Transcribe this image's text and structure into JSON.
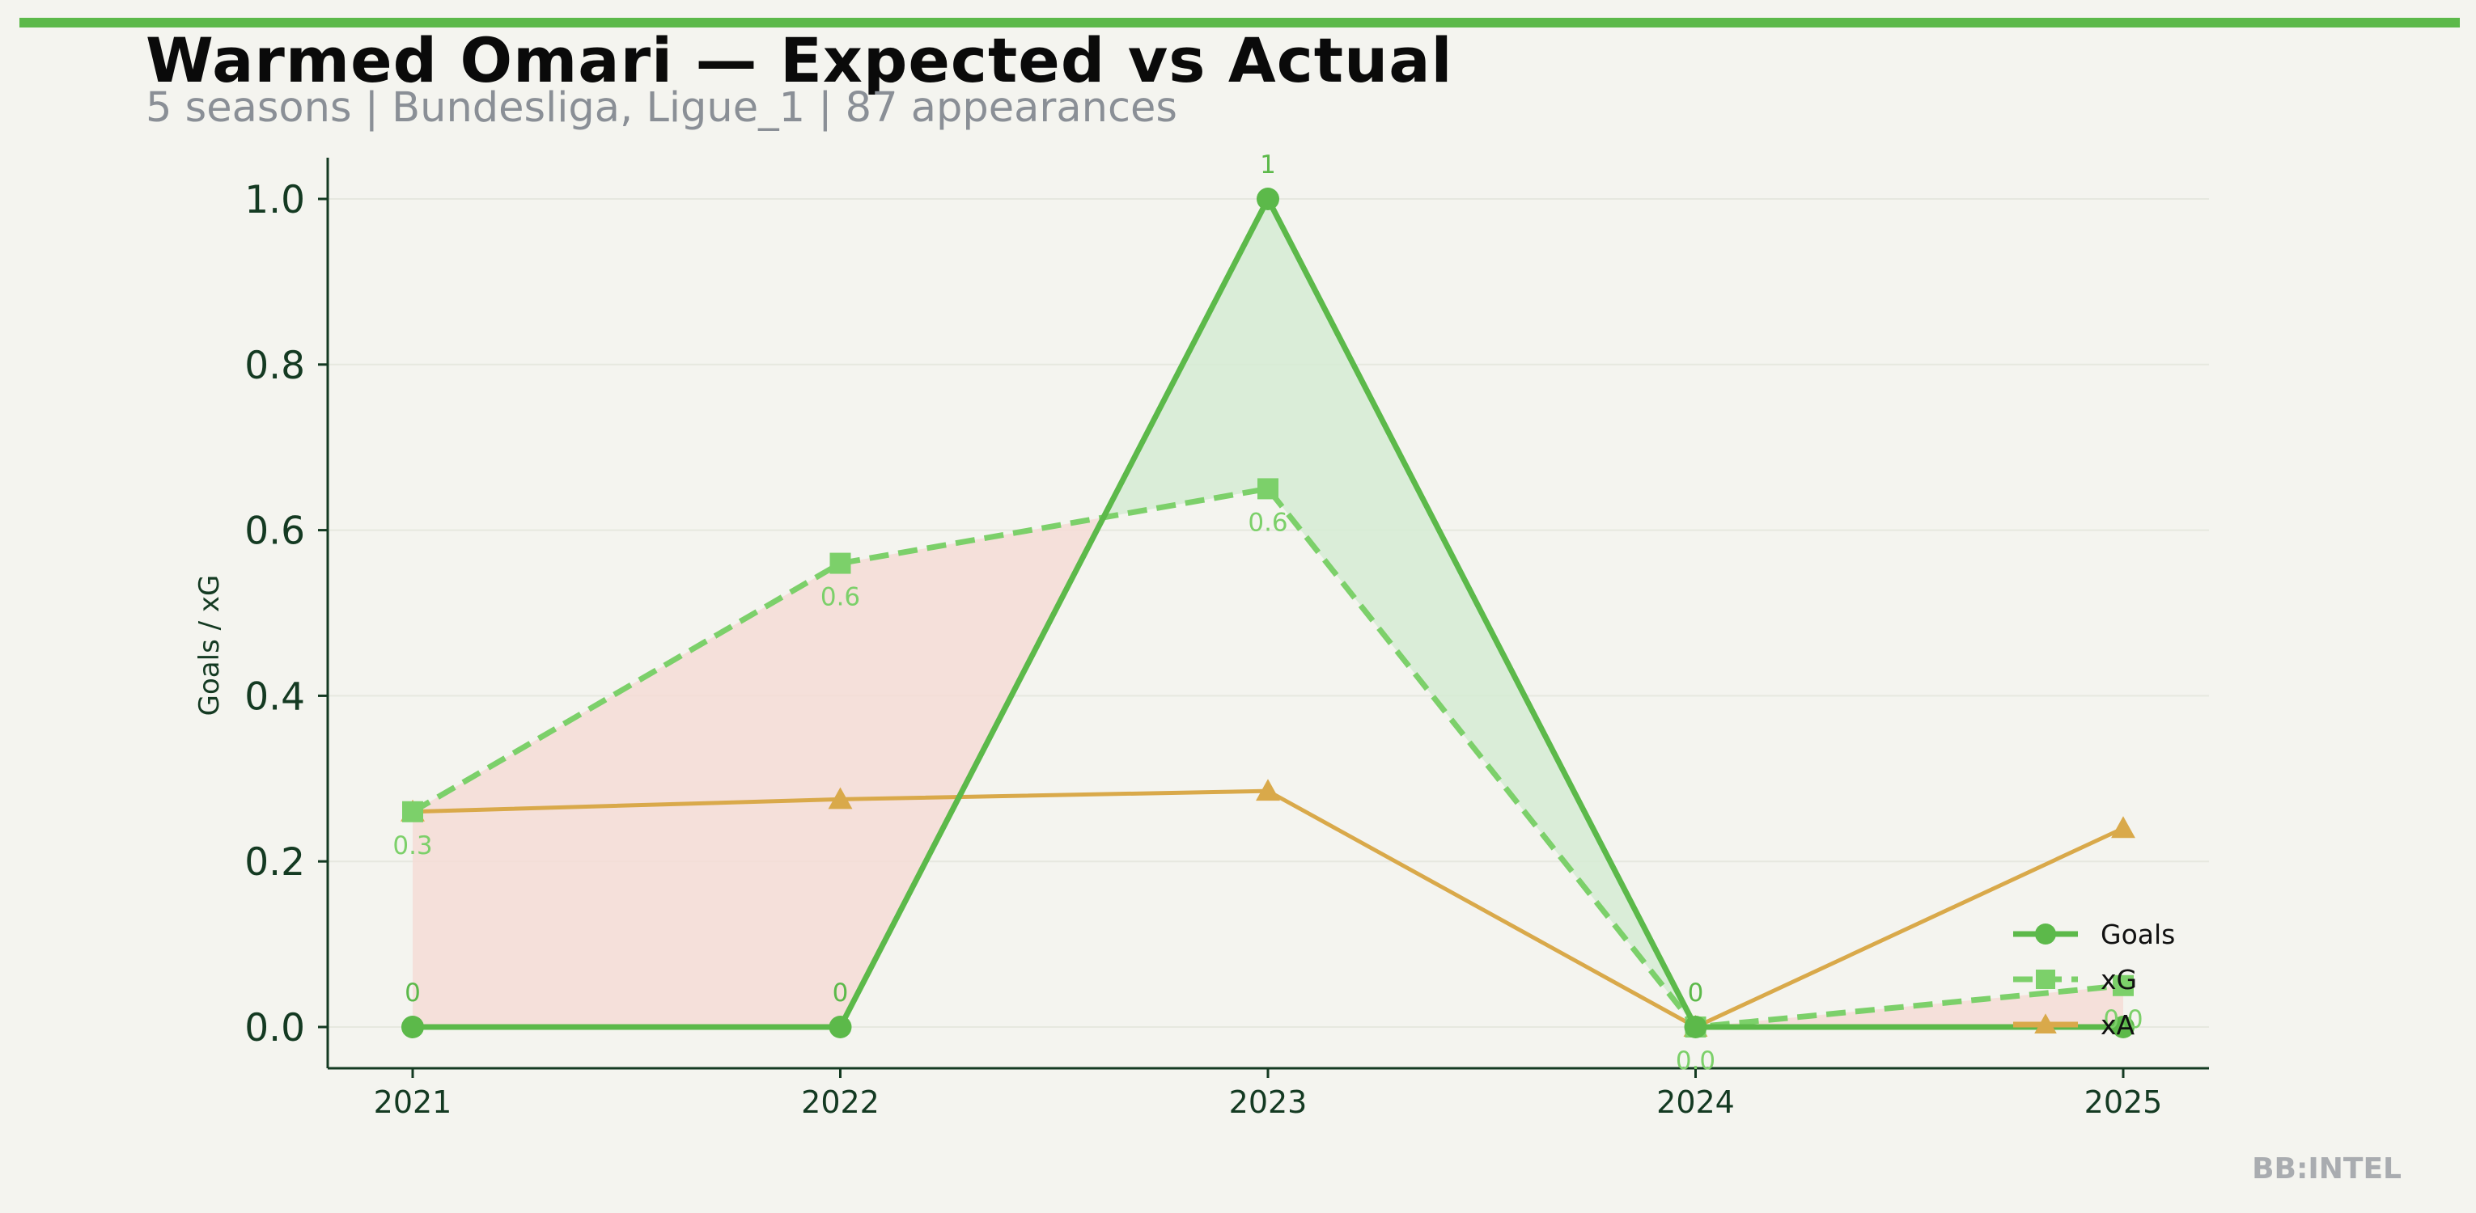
{
  "header": {
    "title": "Warmed Omari — Expected vs Actual",
    "subtitle": "5 seasons | Bundesliga, Ligue_1 | 87 appearances"
  },
  "watermark": "BB:INTEL",
  "colors": {
    "goals": "#5cb94a",
    "xg": "#7cd06a",
    "xa": "#d9a94a",
    "over_fill": "#d5ebd3",
    "under_fill": "#f5dcd6",
    "axis": "#143a22"
  },
  "chart_data": {
    "type": "line",
    "ylabel": "Goals / xG",
    "xlabel": "",
    "categories": [
      "2021",
      "2022",
      "2023",
      "2024",
      "2025"
    ],
    "ylim": [
      -0.05,
      1.05
    ],
    "yticks": [
      "0.0",
      "0.2",
      "0.4",
      "0.6",
      "0.8",
      "1.0"
    ],
    "series": [
      {
        "name": "Goals",
        "key": "goals",
        "values": [
          0,
          0,
          1,
          0,
          0
        ],
        "labels": [
          "0",
          "0",
          "1",
          "0",
          ""
        ],
        "marker": "circle",
        "style": "solid"
      },
      {
        "name": "xG",
        "key": "xg",
        "values": [
          0.26,
          0.56,
          0.65,
          0.0,
          0.05
        ],
        "labels": [
          "0.3",
          "0.6",
          "0.6",
          "0.0",
          "0.0"
        ],
        "marker": "square",
        "style": "dashed"
      },
      {
        "name": "xA",
        "key": "xa",
        "values": [
          0.26,
          0.275,
          0.285,
          0.0,
          0.24
        ],
        "marker": "triangle",
        "style": "solid"
      }
    ],
    "shading": "goals vs xG (green = over-performance, red = under-performance)",
    "legend_position": "bottom-right",
    "grid": "horizontal, faint"
  }
}
